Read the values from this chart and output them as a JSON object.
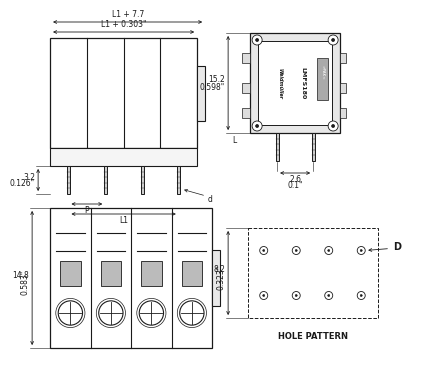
{
  "bg_color": "#ffffff",
  "line_color": "#1a1a1a",
  "top_left": {
    "dim_top1": "L1 + 7.7",
    "dim_top2": "L1 + 0.303\"",
    "dim_left1": "3.2",
    "dim_left2": "0.126\"",
    "label_P": "P",
    "label_L1": "L1",
    "label_d": "d"
  },
  "top_right": {
    "dim_left1": "15.2",
    "dim_left2": "0.598\"",
    "dim_bot1": "2.6",
    "dim_bot2": "0.1\"",
    "label_L": "L"
  },
  "bot_left": {
    "dim_left1": "14.8",
    "dim_left2": "0.583\""
  },
  "bot_right": {
    "dim_left1": "8.2",
    "dim_left2": "0.323\"",
    "label_D": "D",
    "label_hole": "HOLE PATTERN"
  }
}
